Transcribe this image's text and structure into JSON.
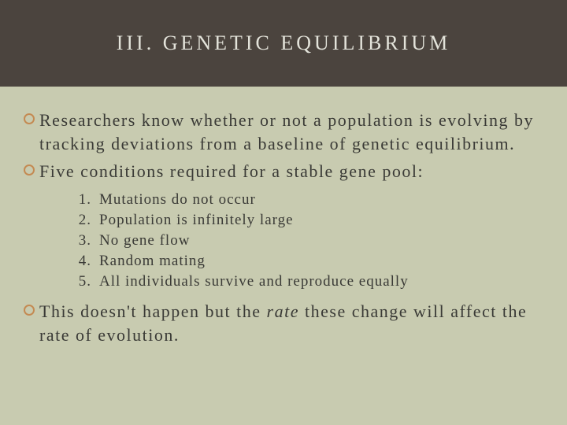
{
  "colors": {
    "header_bg": "#4b443e",
    "body_bg": "#c8cbb0",
    "title_color": "#e3e3da",
    "text_color": "#3a3a36",
    "bullet_ring": "#c48a52"
  },
  "typography": {
    "title_fontsize": 26,
    "title_letterspacing": 4,
    "bullet_fontsize": 22,
    "bullet_letterspacing": 1.5,
    "list_fontsize": 19,
    "list_letterspacing": 1
  },
  "title": "III. GENETIC EQUILIBRIUM",
  "bullets": [
    "Researchers know whether or not a population is evolving by tracking deviations from a baseline of genetic equilibrium.",
    "Five conditions required for a stable gene pool:"
  ],
  "numbered": [
    {
      "n": "1.",
      "text": "Mutations do not occur"
    },
    {
      "n": "2.",
      "text": "Population is infinitely large"
    },
    {
      "n": "3.",
      "text": "No gene flow"
    },
    {
      "n": "4.",
      "text": "Random mating"
    },
    {
      "n": "5.",
      "text": "All individuals survive and reproduce equally"
    }
  ],
  "closing_pre": "This doesn't happen but the ",
  "closing_em": "rate",
  "closing_post": " these change will affect the rate of evolution."
}
